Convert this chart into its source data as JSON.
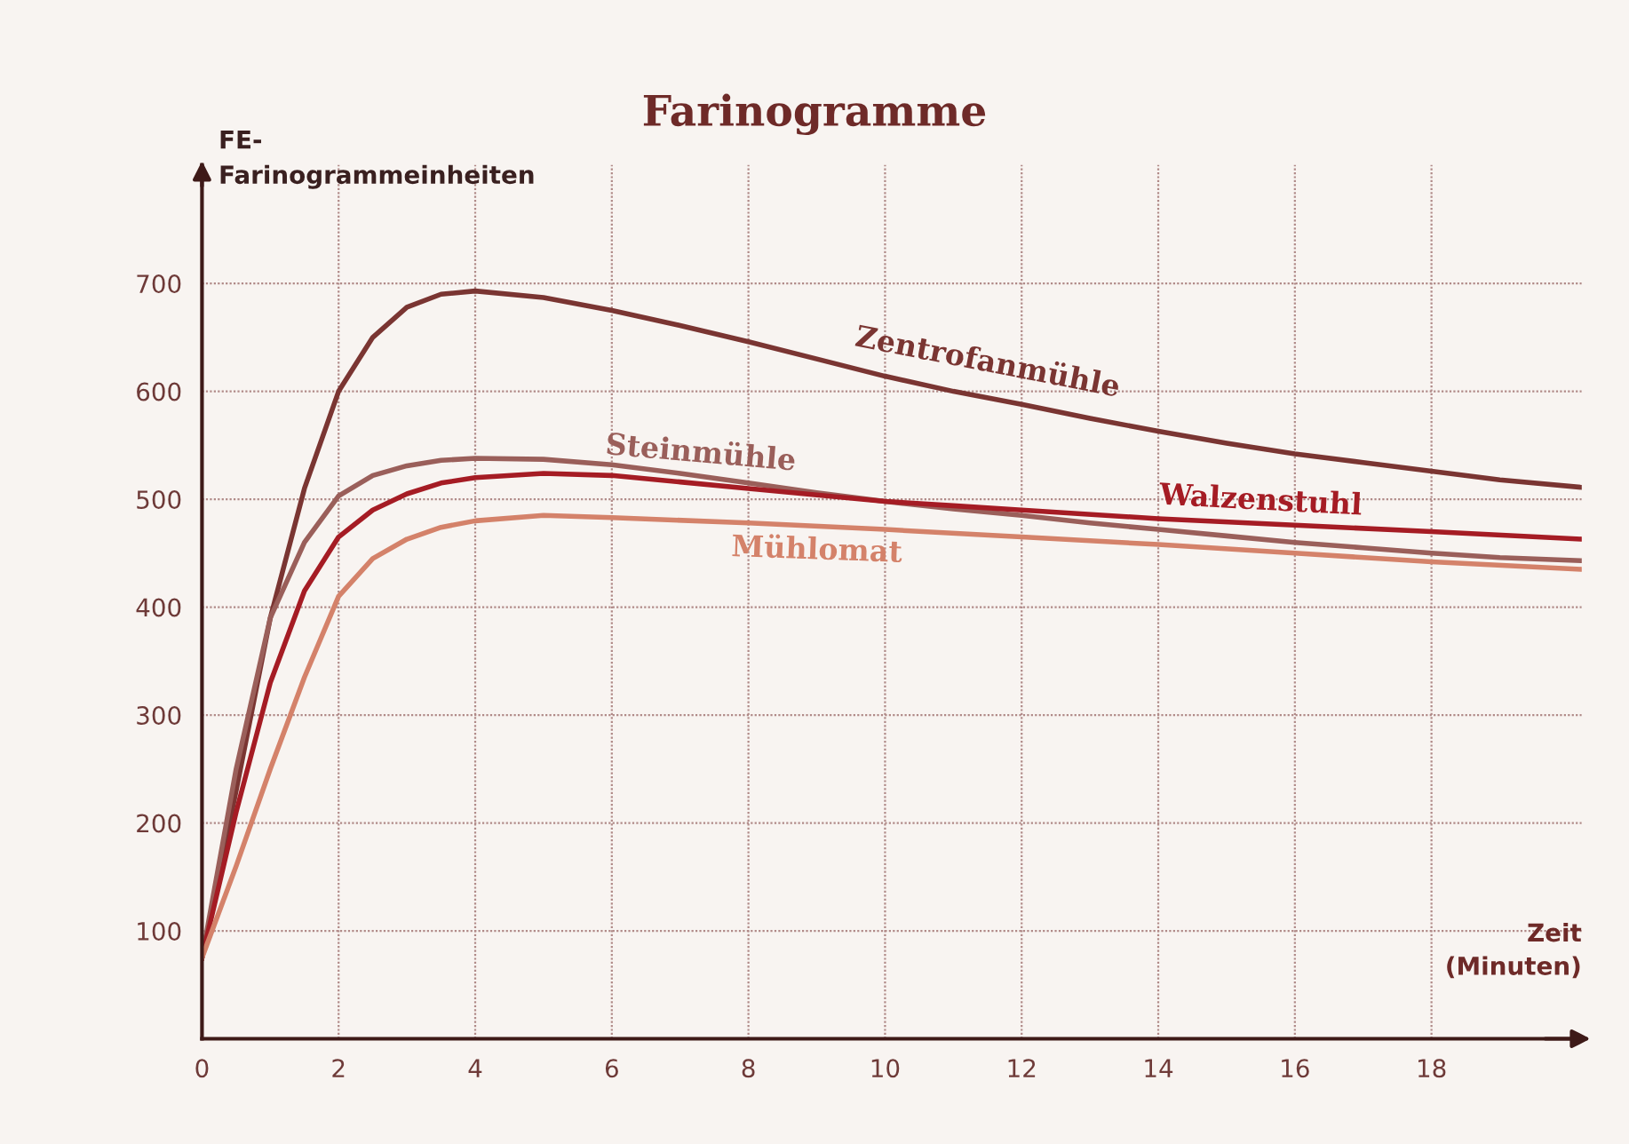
{
  "chart_data": {
    "type": "line",
    "title": "Farinogramme",
    "ylabel": "FE-\nFarinogrammeinheiten",
    "xlabel": "Zeit\n(Minuten)",
    "xlim": [
      0,
      20.2
    ],
    "ylim": [
      0,
      810
    ],
    "xticks": [
      0,
      2,
      4,
      6,
      8,
      10,
      12,
      14,
      16,
      18
    ],
    "yticks": [
      100,
      200,
      300,
      400,
      500,
      600,
      700
    ],
    "grid": true,
    "legend": false,
    "marker": "none",
    "line_style": "solid",
    "series": [
      {
        "name": "Zentrofanmühle",
        "color": "#7a3532",
        "x": [
          0,
          0.5,
          1,
          1.5,
          2,
          2.5,
          3,
          3.5,
          4,
          5,
          6,
          7,
          8,
          9,
          10,
          11,
          12,
          13,
          14,
          15,
          16,
          17,
          18,
          19,
          20.2
        ],
        "values": [
          75,
          230,
          390,
          510,
          600,
          650,
          678,
          690,
          693,
          687,
          675,
          661,
          646,
          630,
          614,
          600,
          588,
          575,
          563,
          552,
          542,
          534,
          526,
          518,
          511
        ]
      },
      {
        "name": "Steinmühle",
        "color": "#9a5f5a",
        "x": [
          0,
          0.5,
          1,
          1.5,
          2,
          2.5,
          3,
          3.5,
          4,
          5,
          6,
          7,
          8,
          9,
          10,
          11,
          12,
          13,
          14,
          15,
          16,
          17,
          18,
          19,
          20.2
        ],
        "values": [
          75,
          250,
          390,
          460,
          503,
          522,
          531,
          536,
          538,
          537,
          532,
          524,
          515,
          506,
          498,
          491,
          485,
          478,
          472,
          466,
          460,
          455,
          450,
          446,
          443
        ]
      },
      {
        "name": "Walzenstuhl",
        "color": "#a51c24",
        "x": [
          0,
          0.5,
          1,
          1.5,
          2,
          2.5,
          3,
          3.5,
          4,
          5,
          6,
          7,
          8,
          9,
          10,
          11,
          12,
          14,
          16,
          18,
          20.2
        ],
        "values": [
          75,
          210,
          330,
          415,
          465,
          490,
          505,
          515,
          520,
          524,
          522,
          516,
          510,
          504,
          498,
          494,
          490,
          482,
          476,
          470,
          463
        ]
      },
      {
        "name": "Mühlomat",
        "color": "#d4826a",
        "x": [
          0,
          0.5,
          1,
          1.5,
          2,
          2.5,
          3,
          3.5,
          4,
          5,
          6,
          8,
          10,
          12,
          14,
          16,
          18,
          20.2
        ],
        "values": [
          75,
          160,
          250,
          335,
          410,
          445,
          463,
          474,
          480,
          485,
          483,
          478,
          472,
          465,
          458,
          450,
          442,
          435
        ]
      }
    ]
  }
}
